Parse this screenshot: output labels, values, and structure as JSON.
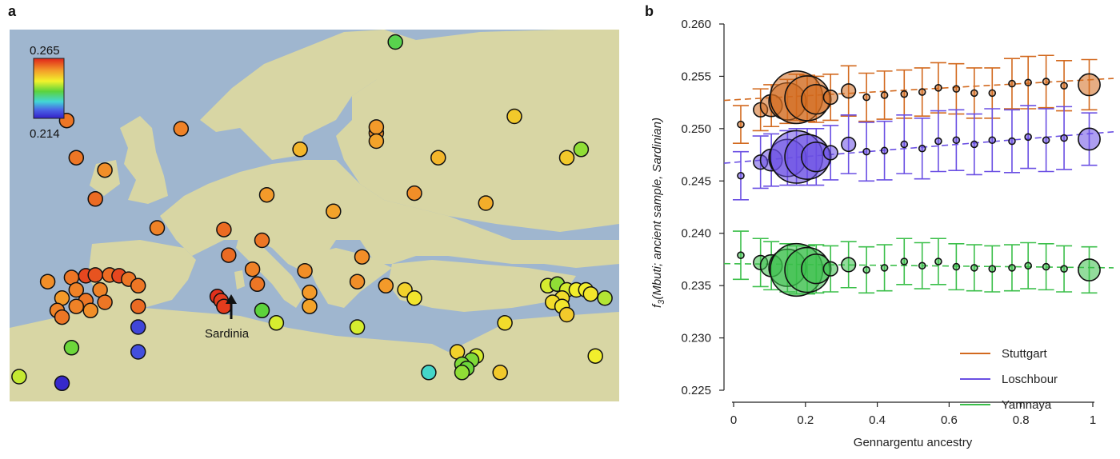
{
  "panel_a": {
    "label": "a",
    "annotation": "Sardinia",
    "colorbar": {
      "max_label": "0.265",
      "min_label": "0.214",
      "min": 0.214,
      "max": 0.265
    }
  },
  "panel_b": {
    "label": "b",
    "legend": [
      "Stuttgart",
      "Loschbour",
      "Yamnaya"
    ]
  },
  "colors": {
    "Stuttgart": "#d2691e",
    "Loschbour": "#6a4fe3",
    "Yamnaya": "#3bbf4a",
    "ocean": "#9fb6cf",
    "land": "#d8d6a4"
  },
  "chart_data": [
    {
      "type": "scatter",
      "description_key": "map",
      "title": "",
      "colorbar_range": [
        0.214,
        0.265
      ],
      "points": [
        {
          "lon": -7.0,
          "lat": 62.0,
          "value": 0.258
        },
        {
          "lon": -6.0,
          "lat": 57.5,
          "value": 0.258
        },
        {
          "lon": -3.0,
          "lat": 56.0,
          "value": 0.256
        },
        {
          "lon": -4.0,
          "lat": 52.5,
          "value": 0.259
        },
        {
          "lon": 5.0,
          "lat": 61.0,
          "value": 0.257
        },
        {
          "lon": 9.5,
          "lat": 48.8,
          "value": 0.259
        },
        {
          "lon": 2.5,
          "lat": 49.0,
          "value": 0.257
        },
        {
          "lon": 14.0,
          "lat": 53.0,
          "value": 0.255
        },
        {
          "lon": 13.5,
          "lat": 47.5,
          "value": 0.258
        },
        {
          "lon": 21.0,
          "lat": 51.0,
          "value": 0.254
        },
        {
          "lon": 17.5,
          "lat": 58.5,
          "value": 0.252
        },
        {
          "lon": 25.5,
          "lat": 60.5,
          "value": 0.256
        },
        {
          "lon": 25.5,
          "lat": 61.2,
          "value": 0.255
        },
        {
          "lon": 25.5,
          "lat": 59.5,
          "value": 0.254
        },
        {
          "lon": 29.5,
          "lat": 53.2,
          "value": 0.256
        },
        {
          "lon": 32.0,
          "lat": 57.5,
          "value": 0.252
        },
        {
          "lon": 37.0,
          "lat": 52.0,
          "value": 0.253
        },
        {
          "lon": 27.5,
          "lat": 71.5,
          "value": 0.236
        },
        {
          "lon": 40.0,
          "lat": 62.5,
          "value": 0.25
        },
        {
          "lon": 45.5,
          "lat": 57.5,
          "value": 0.25
        },
        {
          "lon": 47.0,
          "lat": 58.5,
          "value": 0.24
        },
        {
          "lon": -9.0,
          "lat": 42.5,
          "value": 0.256
        },
        {
          "lon": -6.5,
          "lat": 43.0,
          "value": 0.258
        },
        {
          "lon": -5.0,
          "lat": 43.2,
          "value": 0.262
        },
        {
          "lon": -4.0,
          "lat": 43.3,
          "value": 0.261
        },
        {
          "lon": -2.5,
          "lat": 43.3,
          "value": 0.259
        },
        {
          "lon": -1.5,
          "lat": 43.2,
          "value": 0.262
        },
        {
          "lon": -0.5,
          "lat": 42.8,
          "value": 0.258
        },
        {
          "lon": -6.0,
          "lat": 41.5,
          "value": 0.257
        },
        {
          "lon": -3.5,
          "lat": 41.5,
          "value": 0.257
        },
        {
          "lon": -7.5,
          "lat": 40.5,
          "value": 0.255
        },
        {
          "lon": -5.0,
          "lat": 40.2,
          "value": 0.258
        },
        {
          "lon": -3.0,
          "lat": 40.0,
          "value": 0.258
        },
        {
          "lon": -6.0,
          "lat": 39.5,
          "value": 0.257
        },
        {
          "lon": -8.0,
          "lat": 39.0,
          "value": 0.257
        },
        {
          "lon": -4.5,
          "lat": 39.0,
          "value": 0.256
        },
        {
          "lon": -7.5,
          "lat": 38.2,
          "value": 0.258
        },
        {
          "lon": 0.5,
          "lat": 42.0,
          "value": 0.258
        },
        {
          "lon": 0.5,
          "lat": 39.5,
          "value": 0.259
        },
        {
          "lon": 8.8,
          "lat": 40.7,
          "value": 0.264
        },
        {
          "lon": 9.2,
          "lat": 40.2,
          "value": 0.263
        },
        {
          "lon": 9.5,
          "lat": 39.5,
          "value": 0.263
        },
        {
          "lon": 0.5,
          "lat": 37.0,
          "value": 0.218
        },
        {
          "lon": 0.5,
          "lat": 34.0,
          "value": 0.219
        },
        {
          "lon": -6.5,
          "lat": 34.5,
          "value": 0.238
        },
        {
          "lon": -12.0,
          "lat": 31.0,
          "value": 0.243
        },
        {
          "lon": -7.5,
          "lat": 30.2,
          "value": 0.215
        },
        {
          "lon": 12.5,
          "lat": 44.0,
          "value": 0.257
        },
        {
          "lon": 10.0,
          "lat": 45.7,
          "value": 0.259
        },
        {
          "lon": 13.0,
          "lat": 42.2,
          "value": 0.258
        },
        {
          "lon": 13.5,
          "lat": 39.0,
          "value": 0.237
        },
        {
          "lon": 15.0,
          "lat": 37.5,
          "value": 0.244
        },
        {
          "lon": 18.0,
          "lat": 43.8,
          "value": 0.256
        },
        {
          "lon": 18.5,
          "lat": 41.2,
          "value": 0.255
        },
        {
          "lon": 18.5,
          "lat": 39.5,
          "value": 0.254
        },
        {
          "lon": 23.5,
          "lat": 42.5,
          "value": 0.256
        },
        {
          "lon": 24.0,
          "lat": 45.5,
          "value": 0.256
        },
        {
          "lon": 26.5,
          "lat": 42.0,
          "value": 0.255
        },
        {
          "lon": 28.5,
          "lat": 41.5,
          "value": 0.249
        },
        {
          "lon": 29.5,
          "lat": 40.5,
          "value": 0.247
        },
        {
          "lon": 23.5,
          "lat": 37.0,
          "value": 0.244
        },
        {
          "lon": 39.0,
          "lat": 37.5,
          "value": 0.248
        },
        {
          "lon": 43.5,
          "lat": 42.0,
          "value": 0.244
        },
        {
          "lon": 44.5,
          "lat": 42.2,
          "value": 0.24
        },
        {
          "lon": 45.5,
          "lat": 41.5,
          "value": 0.244
        },
        {
          "lon": 46.5,
          "lat": 41.5,
          "value": 0.246
        },
        {
          "lon": 47.5,
          "lat": 41.5,
          "value": 0.246
        },
        {
          "lon": 48.0,
          "lat": 41.0,
          "value": 0.247
        },
        {
          "lon": 49.5,
          "lat": 40.5,
          "value": 0.242
        },
        {
          "lon": 45.0,
          "lat": 40.5,
          "value": 0.248
        },
        {
          "lon": 44.0,
          "lat": 40.0,
          "value": 0.248
        },
        {
          "lon": 45.0,
          "lat": 39.5,
          "value": 0.247
        },
        {
          "lon": 45.5,
          "lat": 38.5,
          "value": 0.25
        },
        {
          "lon": 34.0,
          "lat": 34.0,
          "value": 0.249
        },
        {
          "lon": 36.0,
          "lat": 33.5,
          "value": 0.244
        },
        {
          "lon": 35.5,
          "lat": 33.0,
          "value": 0.239
        },
        {
          "lon": 34.5,
          "lat": 32.5,
          "value": 0.239
        },
        {
          "lon": 35.0,
          "lat": 32.0,
          "value": 0.238
        },
        {
          "lon": 34.5,
          "lat": 31.5,
          "value": 0.24
        },
        {
          "lon": 31.0,
          "lat": 31.5,
          "value": 0.229
        },
        {
          "lon": 38.5,
          "lat": 31.5,
          "value": 0.25
        },
        {
          "lon": 48.5,
          "lat": 33.5,
          "value": 0.246
        }
      ]
    },
    {
      "type": "scatter",
      "title": "",
      "xlabel": "Gennargentu ancestry",
      "ylabel": "f3(Mbuti; ancient sample, Sardinian)",
      "xlim": [
        0,
        1
      ],
      "ylim": [
        0.225,
        0.26
      ],
      "xticks": [
        0,
        0.2,
        0.4,
        0.6,
        0.8,
        1
      ],
      "yticks": [
        0.225,
        0.23,
        0.235,
        0.24,
        0.245,
        0.25,
        0.255,
        0.26
      ],
      "x": [
        0.02,
        0.075,
        0.105,
        0.15,
        0.175,
        0.205,
        0.23,
        0.27,
        0.32,
        0.37,
        0.42,
        0.475,
        0.525,
        0.57,
        0.62,
        0.67,
        0.72,
        0.775,
        0.82,
        0.87,
        0.92,
        0.99
      ],
      "sizes": [
        1,
        2,
        3,
        5,
        7,
        6,
        4,
        2,
        2,
        1,
        1,
        1,
        1,
        1,
        1,
        1,
        1,
        1,
        1,
        1,
        1,
        3
      ],
      "series": [
        {
          "name": "Stuttgart",
          "values": [
            0.2504,
            0.2518,
            0.2522,
            0.2526,
            0.253,
            0.2529,
            0.2528,
            0.253,
            0.2536,
            0.253,
            0.2532,
            0.2533,
            0.2535,
            0.2539,
            0.2538,
            0.2534,
            0.2534,
            0.2543,
            0.2544,
            0.2545,
            0.2541,
            0.2542
          ],
          "err": [
            0.0018,
            0.002,
            0.002,
            0.0021,
            0.0022,
            0.0022,
            0.0022,
            0.0022,
            0.0024,
            0.0023,
            0.0023,
            0.0023,
            0.0023,
            0.0024,
            0.0024,
            0.0024,
            0.0024,
            0.0024,
            0.0025,
            0.0025,
            0.0024,
            0.0024
          ],
          "fit": [
            0.2527,
            0.2548
          ]
        },
        {
          "name": "Loschbour",
          "values": [
            0.2455,
            0.2468,
            0.247,
            0.2472,
            0.2473,
            0.2473,
            0.2473,
            0.2477,
            0.2485,
            0.2478,
            0.2479,
            0.2485,
            0.2481,
            0.2488,
            0.2489,
            0.2485,
            0.2489,
            0.2488,
            0.2492,
            0.2489,
            0.2491,
            0.249
          ],
          "err": [
            0.0023,
            0.0025,
            0.0025,
            0.0026,
            0.0027,
            0.0027,
            0.0027,
            0.0026,
            0.0028,
            0.0028,
            0.0028,
            0.0028,
            0.0029,
            0.0029,
            0.0029,
            0.0029,
            0.003,
            0.003,
            0.003,
            0.003,
            0.003,
            0.0025
          ],
          "fit": [
            0.2467,
            0.2497
          ]
        },
        {
          "name": "Yamnaya",
          "values": [
            0.2379,
            0.2372,
            0.2369,
            0.2367,
            0.2365,
            0.2365,
            0.2366,
            0.2366,
            0.237,
            0.2365,
            0.2367,
            0.2373,
            0.2369,
            0.2373,
            0.2368,
            0.2367,
            0.2366,
            0.2367,
            0.2369,
            0.2368,
            0.2366,
            0.2365
          ],
          "err": [
            0.0023,
            0.0023,
            0.0023,
            0.0023,
            0.0023,
            0.0023,
            0.0023,
            0.0022,
            0.0022,
            0.0022,
            0.0022,
            0.0022,
            0.0022,
            0.0022,
            0.0022,
            0.0022,
            0.0022,
            0.0022,
            0.0022,
            0.0022,
            0.0022,
            0.0022
          ],
          "fit": [
            0.2371,
            0.2367
          ]
        }
      ],
      "legend_position": "bottom-right",
      "grid": false
    }
  ]
}
